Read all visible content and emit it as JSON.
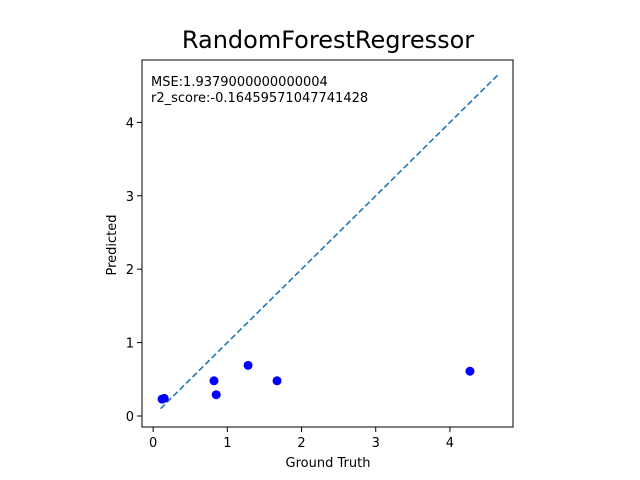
{
  "chart_data": {
    "type": "scatter",
    "title": "RandomForestRegressor",
    "xlabel": "Ground Truth",
    "ylabel": "Predicted",
    "xlim": [
      -0.15,
      4.85
    ],
    "ylim": [
      -0.15,
      4.85
    ],
    "xticks": [
      0,
      1,
      2,
      3,
      4
    ],
    "yticks": [
      0,
      1,
      2,
      3,
      4
    ],
    "grid": false,
    "annotations": [
      "MSE:1.9379000000000004",
      "r2_score:-0.16459571047741428"
    ],
    "points": [
      {
        "x": 0.12,
        "y": 0.23
      },
      {
        "x": 0.15,
        "y": 0.24
      },
      {
        "x": 0.82,
        "y": 0.48
      },
      {
        "x": 0.85,
        "y": 0.29
      },
      {
        "x": 1.28,
        "y": 0.69
      },
      {
        "x": 1.67,
        "y": 0.48
      },
      {
        "x": 4.27,
        "y": 0.61
      }
    ],
    "point_color": "#0000ff",
    "reference_line": {
      "x": [
        0.1,
        4.67
      ],
      "y": [
        0.1,
        4.67
      ],
      "style": "dashed",
      "color": "#1f77b4"
    }
  }
}
